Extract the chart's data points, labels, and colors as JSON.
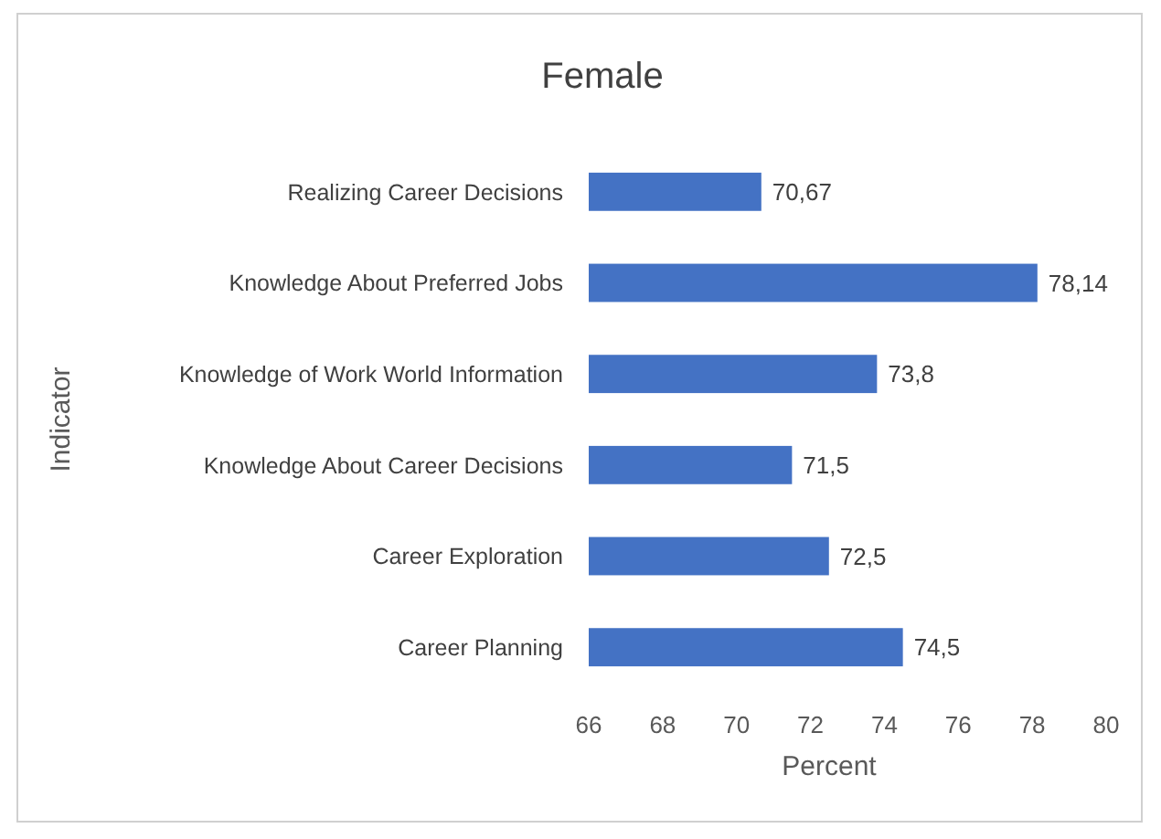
{
  "chart_data": {
    "type": "bar",
    "orientation": "horizontal",
    "title": "Female",
    "xlabel": "Percent",
    "ylabel": "Indicator",
    "categories": [
      "Realizing Career Decisions",
      "Knowledge About Preferred Jobs",
      "Knowledge of Work World Information",
      "Knowledge About Career Decisions",
      "Career Exploration",
      "Career Planning"
    ],
    "values": [
      70.67,
      78.14,
      73.8,
      71.5,
      72.5,
      74.5
    ],
    "value_labels": [
      "70,67",
      "78,14",
      "73,8",
      "71,5",
      "72,5",
      "74,5"
    ],
    "color": "#4472c4",
    "xlim": [
      66,
      80
    ],
    "xticks": [
      66,
      68,
      70,
      72,
      74,
      76,
      78,
      80
    ]
  }
}
